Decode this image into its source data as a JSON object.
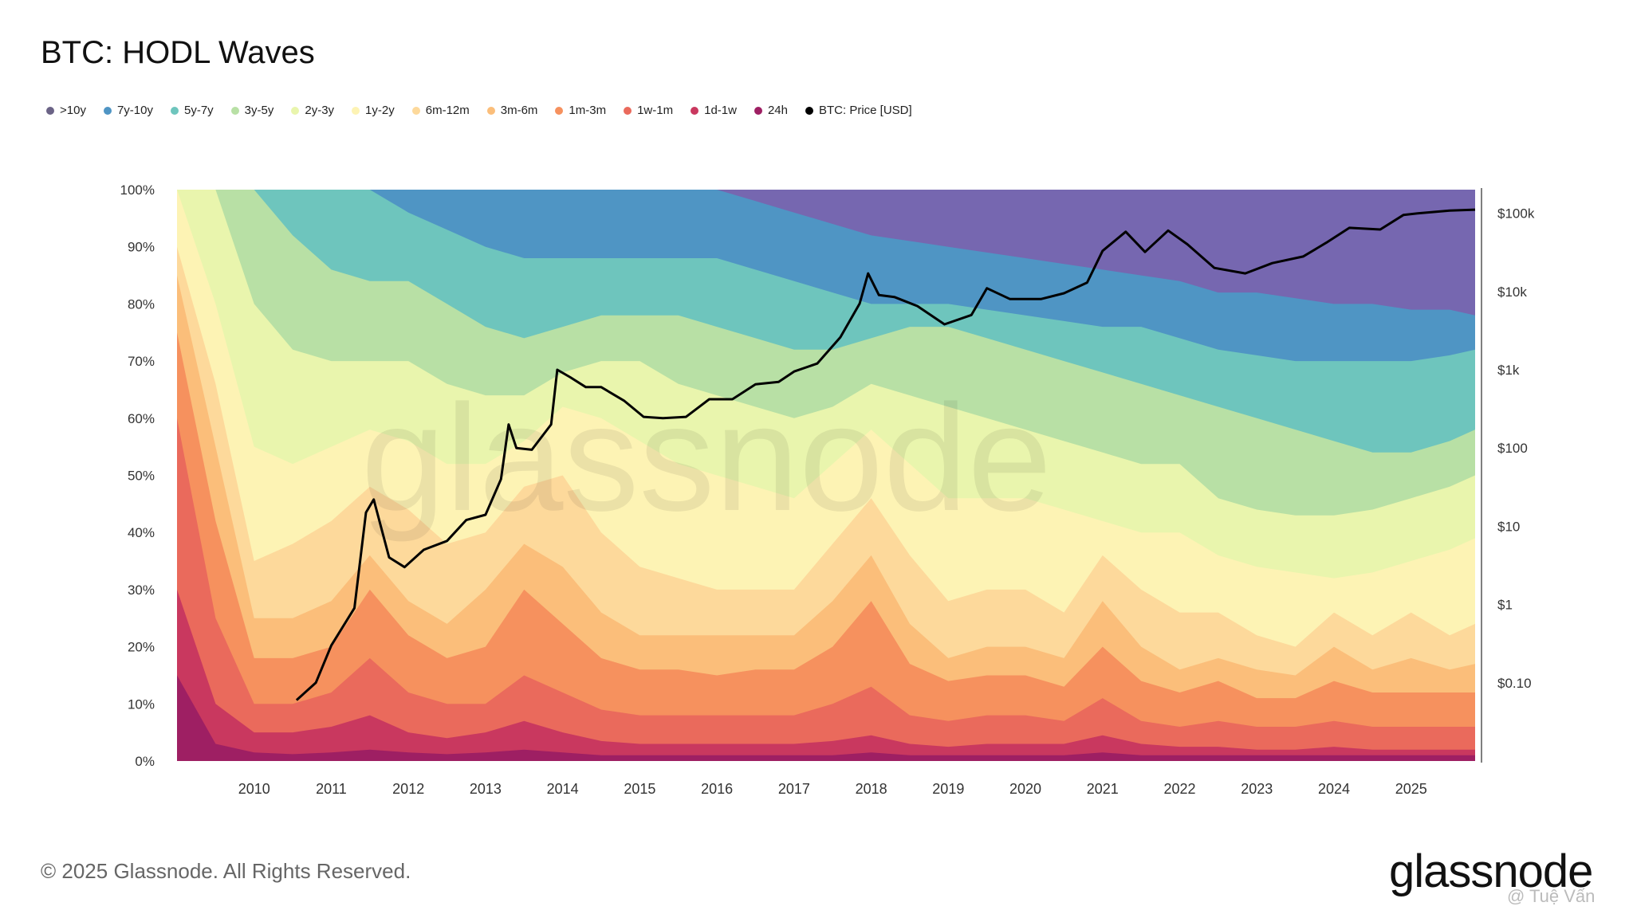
{
  "title": "BTC: HODL Waves",
  "footer": "© 2025 Glassnode. All Rights Reserved.",
  "logo": "glassnode",
  "watermark": "glassnode",
  "corner_watermark": "@ Tuệ Vấn",
  "chart_data": {
    "type": "area",
    "stacked": true,
    "normalized_to_percent": true,
    "title": "BTC: HODL Waves",
    "x_tick_labels": [
      "2010",
      "2011",
      "2012",
      "2013",
      "2014",
      "2015",
      "2016",
      "2017",
      "2018",
      "2019",
      "2020",
      "2021",
      "2022",
      "2023",
      "2024",
      "2025"
    ],
    "x_range": [
      2009.0,
      2025.83
    ],
    "y_left_ticks": [
      "0%",
      "10%",
      "20%",
      "30%",
      "40%",
      "50%",
      "60%",
      "70%",
      "80%",
      "90%",
      "100%"
    ],
    "ylim": [
      0,
      100
    ],
    "y_right_ticks": [
      "$0.10",
      "$1",
      "$10",
      "$100",
      "$1k",
      "$10k",
      "$100k"
    ],
    "y_right_scale": "log",
    "y_right_range": [
      0.01,
      200000
    ],
    "x_sample": [
      2009.0,
      2009.5,
      2010.0,
      2010.5,
      2011.0,
      2011.5,
      2012.0,
      2012.5,
      2013.0,
      2013.5,
      2014.0,
      2014.5,
      2015.0,
      2015.5,
      2016.0,
      2016.5,
      2017.0,
      2017.5,
      2018.0,
      2018.5,
      2019.0,
      2019.5,
      2020.0,
      2020.5,
      2021.0,
      2021.5,
      2022.0,
      2022.5,
      2023.0,
      2023.5,
      2024.0,
      2024.5,
      2025.0,
      2025.5,
      2025.83
    ],
    "series": [
      {
        "name": "24h",
        "color": "#9e1f63",
        "values": [
          15,
          3,
          1.5,
          1.2,
          1.5,
          2,
          1.5,
          1.2,
          1.5,
          2,
          1.5,
          1,
          1,
          1,
          1,
          1,
          1,
          1,
          1.5,
          1,
          1,
          1,
          1,
          1,
          1.5,
          1,
          1,
          1,
          1,
          1,
          1,
          1,
          1,
          1,
          1
        ]
      },
      {
        "name": "1d-1w",
        "color": "#c9385f",
        "values": [
          30,
          10,
          5,
          5,
          6,
          8,
          5,
          4,
          5,
          7,
          5,
          3.5,
          3,
          3,
          3,
          3,
          3,
          3.5,
          4.5,
          3,
          2.5,
          3,
          3,
          3,
          4.5,
          3,
          2.5,
          2.5,
          2,
          2,
          2.5,
          2,
          2,
          2,
          2
        ]
      },
      {
        "name": "1w-1m",
        "color": "#ea6a5c",
        "values": [
          60,
          25,
          10,
          10,
          12,
          18,
          12,
          10,
          10,
          15,
          12,
          9,
          8,
          8,
          8,
          8,
          8,
          10,
          13,
          8,
          7,
          8,
          8,
          7,
          11,
          7,
          6,
          7,
          6,
          6,
          7,
          6,
          6,
          6,
          6
        ]
      },
      {
        "name": "1m-3m",
        "color": "#f6915e",
        "values": [
          75,
          42,
          18,
          18,
          20,
          30,
          22,
          18,
          20,
          30,
          24,
          18,
          16,
          16,
          15,
          16,
          16,
          20,
          28,
          17,
          14,
          15,
          15,
          13,
          20,
          14,
          12,
          14,
          11,
          11,
          14,
          12,
          12,
          12,
          12
        ]
      },
      {
        "name": "3m-6m",
        "color": "#fbbe7a",
        "values": [
          85,
          55,
          25,
          25,
          28,
          36,
          28,
          24,
          30,
          38,
          34,
          26,
          22,
          22,
          22,
          22,
          22,
          28,
          36,
          24,
          18,
          20,
          20,
          18,
          28,
          20,
          16,
          18,
          16,
          15,
          20,
          16,
          18,
          16,
          17
        ]
      },
      {
        "name": "6m-12m",
        "color": "#fdd99b",
        "values": [
          90,
          66,
          35,
          38,
          42,
          48,
          44,
          38,
          40,
          48,
          50,
          40,
          34,
          32,
          30,
          30,
          30,
          38,
          46,
          36,
          28,
          30,
          30,
          26,
          36,
          30,
          26,
          26,
          22,
          20,
          26,
          22,
          26,
          22,
          24
        ]
      },
      {
        "name": "1y-2y",
        "color": "#fdf3b4",
        "values": [
          100,
          80,
          55,
          52,
          55,
          58,
          56,
          52,
          52,
          56,
          62,
          60,
          56,
          52,
          50,
          48,
          46,
          52,
          58,
          52,
          46,
          46,
          46,
          44,
          42,
          40,
          40,
          36,
          34,
          33,
          32,
          33,
          35,
          37,
          39
        ]
      },
      {
        "name": "2y-3y",
        "color": "#e9f5ad",
        "values": [
          100,
          100,
          80,
          72,
          70,
          70,
          70,
          66,
          64,
          64,
          68,
          70,
          70,
          66,
          64,
          62,
          60,
          62,
          66,
          64,
          62,
          60,
          58,
          56,
          54,
          52,
          52,
          46,
          44,
          43,
          43,
          44,
          46,
          48,
          50
        ]
      },
      {
        "name": "3y-5y",
        "color": "#b8e0a5",
        "values": [
          100,
          100,
          100,
          92,
          86,
          84,
          84,
          80,
          76,
          74,
          76,
          78,
          78,
          78,
          76,
          74,
          72,
          72,
          74,
          76,
          76,
          74,
          72,
          70,
          68,
          66,
          64,
          62,
          60,
          58,
          56,
          54,
          54,
          56,
          58
        ]
      },
      {
        "name": "5y-7y",
        "color": "#6ec5bd",
        "values": [
          100,
          100,
          100,
          100,
          100,
          100,
          96,
          93,
          90,
          88,
          88,
          88,
          88,
          88,
          88,
          86,
          84,
          82,
          80,
          80,
          80,
          79,
          78,
          77,
          76,
          76,
          74,
          72,
          71,
          70,
          70,
          70,
          70,
          71,
          72
        ]
      },
      {
        "name": "7y-10y",
        "color": "#4f95c4",
        "values": [
          100,
          100,
          100,
          100,
          100,
          100,
          100,
          100,
          100,
          100,
          100,
          100,
          100,
          100,
          100,
          98,
          96,
          94,
          92,
          91,
          90,
          89,
          88,
          87,
          86,
          85,
          84,
          82,
          82,
          81,
          80,
          80,
          79,
          79,
          78
        ]
      },
      {
        "name": ">10y",
        "color": "#7667b0",
        "values": [
          100,
          100,
          100,
          100,
          100,
          100,
          100,
          100,
          100,
          100,
          100,
          100,
          100,
          100,
          100,
          100,
          100,
          100,
          100,
          100,
          100,
          100,
          100,
          100,
          100,
          100,
          100,
          100,
          100,
          100,
          100,
          100,
          100,
          100,
          100
        ]
      }
    ],
    "price_series": {
      "name": "BTC: Price [USD]",
      "color": "#000000",
      "x": [
        2010.55,
        2010.8,
        2011.0,
        2011.3,
        2011.45,
        2011.55,
        2011.75,
        2011.95,
        2012.2,
        2012.5,
        2012.75,
        2013.0,
        2013.2,
        2013.3,
        2013.4,
        2013.6,
        2013.85,
        2013.93,
        2014.1,
        2014.3,
        2014.5,
        2014.8,
        2015.05,
        2015.3,
        2015.6,
        2015.9,
        2016.2,
        2016.5,
        2016.8,
        2017.0,
        2017.3,
        2017.6,
        2017.85,
        2017.96,
        2018.1,
        2018.3,
        2018.6,
        2018.95,
        2019.3,
        2019.5,
        2019.8,
        2020.2,
        2020.5,
        2020.8,
        2021.0,
        2021.3,
        2021.55,
        2021.85,
        2022.1,
        2022.45,
        2022.85,
        2023.2,
        2023.6,
        2023.9,
        2024.2,
        2024.6,
        2024.9,
        2025.1,
        2025.5,
        2025.83
      ],
      "y": [
        0.06,
        0.1,
        0.3,
        0.9,
        15,
        22,
        4,
        3,
        5,
        6.5,
        12,
        14,
        40,
        200,
        100,
        95,
        200,
        1000,
        800,
        600,
        600,
        400,
        250,
        240,
        250,
        420,
        420,
        650,
        700,
        950,
        1200,
        2600,
        7000,
        17000,
        9000,
        8500,
        6500,
        3800,
        5000,
        11000,
        8000,
        8000,
        9500,
        13000,
        33000,
        58000,
        32000,
        60000,
        40000,
        20000,
        17000,
        23000,
        28000,
        42000,
        65000,
        62000,
        95000,
        100000,
        108000,
        111000
      ]
    },
    "legend": [
      ">10y",
      "7y-10y",
      "5y-7y",
      "3y-5y",
      "2y-3y",
      "1y-2y",
      "6m-12m",
      "3m-6m",
      "1m-3m",
      "1w-1m",
      "1d-1w",
      "24h",
      "BTC: Price [USD]"
    ]
  }
}
